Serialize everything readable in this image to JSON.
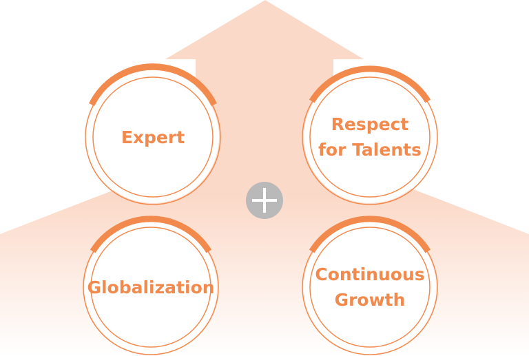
{
  "colors": {
    "accent": "#f28a4e",
    "arrow_fill": "#fbd9c8",
    "plus_bg": "#b9b9b9"
  },
  "center_icon": "plus-icon",
  "values": [
    {
      "key": "expert",
      "lines": [
        "Expert"
      ]
    },
    {
      "key": "respect",
      "lines": [
        "Respect",
        "for Talents"
      ]
    },
    {
      "key": "globalization",
      "lines": [
        "Globalization"
      ]
    },
    {
      "key": "growth",
      "lines": [
        "Continuous",
        "Growth"
      ]
    }
  ]
}
